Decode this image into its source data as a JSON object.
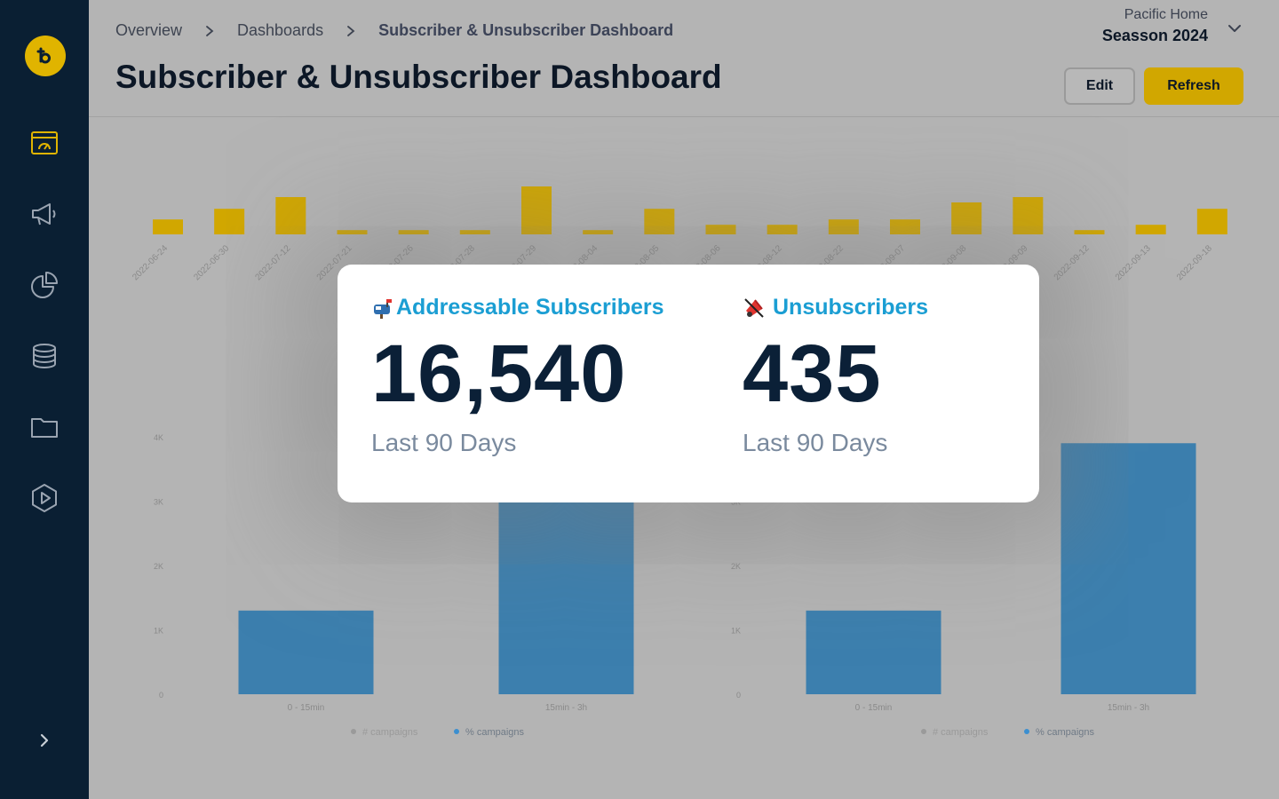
{
  "sidebar": {
    "items": [
      {
        "name": "dashboard-icon"
      },
      {
        "name": "megaphone-icon"
      },
      {
        "name": "pie-chart-icon"
      },
      {
        "name": "database-icon"
      },
      {
        "name": "folder-icon"
      },
      {
        "name": "play-icon"
      }
    ],
    "accent": "#e0b400"
  },
  "breadcrumb": {
    "items": [
      "Overview",
      "Dashboards",
      "Subscriber & Unsubscriber Dashboard"
    ]
  },
  "header": {
    "title": "Subscriber & Unsubscriber Dashboard",
    "workspace_name": "Pacific Home",
    "workspace_season": "Seasson 2024",
    "edit_label": "Edit",
    "refresh_label": "Refresh"
  },
  "stats": {
    "addressable": {
      "label": "Addressable Subscribers",
      "icon": "mailbox-icon",
      "value": "16,540",
      "sub": "Last 90 Days"
    },
    "unsubscribers": {
      "label": "Unsubscribers",
      "icon": "muted-speaker-icon",
      "value": "435",
      "sub": "Last 90 Days"
    }
  },
  "chart_data": [
    {
      "type": "bar",
      "categories": [
        "2022-06-24",
        "2022-06-30",
        "2022-07-12",
        "2022-07-21",
        "2022-07-26",
        "2022-07-28",
        "2022-07-29",
        "2022-08-04",
        "2022-08-05",
        "2022-08-06",
        "2022-08-12",
        "2022-08-22",
        "2022-09-07",
        "2022-09-08",
        "2022-09-09",
        "2022-09-12",
        "2022-09-13",
        "2022-09-18"
      ],
      "values": [
        14,
        24,
        35,
        4,
        4,
        4,
        45,
        4,
        24,
        9,
        9,
        14,
        14,
        30,
        35,
        4,
        9,
        24
      ],
      "color": "#d1a700"
    },
    {
      "type": "bar",
      "categories": [
        "0 - 15min",
        "15min - 3h"
      ],
      "values": [
        1300,
        4000
      ],
      "yticks": [
        "0",
        "1K",
        "2K",
        "3K",
        "4K"
      ],
      "ylim": [
        0,
        4000
      ],
      "legend": [
        "# campaigns",
        "% campaigns"
      ],
      "color": "#3c7fae"
    },
    {
      "type": "bar",
      "categories": [
        "0 - 15min",
        "15min - 3h"
      ],
      "values": [
        1300,
        3900
      ],
      "yticks": [
        "0",
        "1K",
        "2K",
        "3K",
        "4K"
      ],
      "ylim": [
        0,
        4000
      ],
      "legend": [
        "# campaigns",
        "% campaigns"
      ],
      "color": "#3c7fae"
    }
  ]
}
